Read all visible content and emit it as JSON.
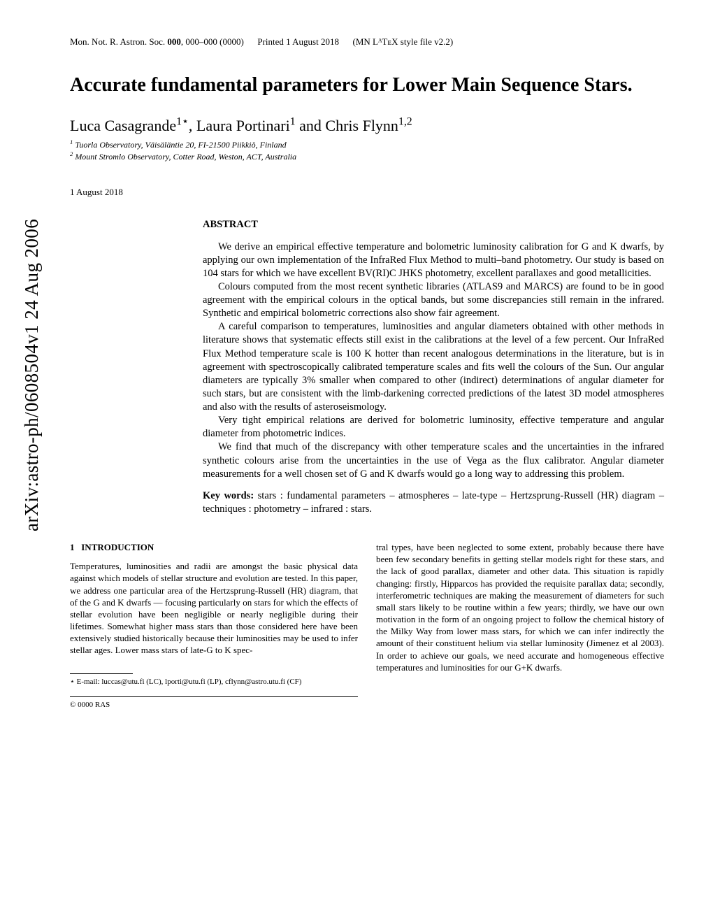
{
  "header": {
    "journal": "Mon. Not. R. Astron. Soc.",
    "vol": "000",
    "pages": "000–000",
    "year": "(0000)",
    "printed": "Printed 1 August 2018",
    "style": "(MN LᴬTᴇX style file v2.2)"
  },
  "arxiv": "arXiv:astro-ph/0608504v1  24 Aug 2006",
  "title": "Accurate fundamental parameters for Lower Main Sequence Stars.",
  "authors": "Luca Casagrande",
  "author_sup1": "1⋆",
  "author2": ", Laura Portinari",
  "author_sup2": "1",
  "author3": " and Chris Flynn",
  "author_sup3": "1,2",
  "affil1": "Tuorla Observatory, Väisäläntie 20, FI-21500 Piikkiö, Finland",
  "affil2": "Mount Stromlo Observatory, Cotter Road, Weston, ACT, Australia",
  "date": "1 August 2018",
  "abstract_label": "ABSTRACT",
  "abstract": {
    "p1": "We derive an empirical effective temperature and bolometric luminosity calibration for G and K dwarfs, by applying our own implementation of the InfraRed Flux Method to multi–band photometry. Our study is based on 104 stars for which we have excellent BV(RI)C JHKS photometry, excellent parallaxes and good metallicities.",
    "p2": "Colours computed from the most recent synthetic libraries (ATLAS9 and MARCS) are found to be in good agreement with the empirical colours in the optical bands, but some discrepancies still remain in the infrared. Synthetic and empirical bolometric corrections also show fair agreement.",
    "p3": "A careful comparison to temperatures, luminosities and angular diameters obtained with other methods in literature shows that systematic effects still exist in the calibrations at the level of a few percent. Our InfraRed Flux Method temperature scale is 100 K hotter than recent analogous determinations in the literature, but is in agreement with spectroscopically calibrated temperature scales and fits well the colours of the Sun. Our angular diameters are typically 3% smaller when compared to other (indirect) determinations of angular diameter for such stars, but are consistent with the limb-darkening corrected predictions of the latest 3D model atmospheres and also with the results of asteroseismology.",
    "p4": "Very tight empirical relations are derived for bolometric luminosity, effective temperature and angular diameter from photometric indices.",
    "p5": "We find that much of the discrepancy with other temperature scales and the uncertainties in the infrared synthetic colours arise from the uncertainties in the use of Vega as the flux calibrator. Angular diameter measurements for a well chosen set of G and K dwarfs would go a long way to addressing this problem."
  },
  "keywords_label": "Key words:",
  "keywords": " stars : fundamental parameters – atmospheres – late-type – Hertzsprung-Russell (HR) diagram – techniques : photometry – infrared : stars.",
  "section1_num": "1",
  "section1_title": "INTRODUCTION",
  "col1": "Temperatures, luminosities and radii are amongst the basic physical data against which models of stellar structure and evolution are tested. In this paper, we address one particular area of the Hertzsprung-Russell (HR) diagram, that of the G and K dwarfs — focusing particularly on stars for which the effects of stellar evolution have been negligible or nearly negligible during their lifetimes. Somewhat higher mass stars than those considered here have been extensively studied historically because their luminosities may be used to infer stellar ages. Lower mass stars of late-G to K spec-",
  "col2": "tral types, have been neglected to some extent, probably because there have been few secondary benefits in getting stellar models right for these stars, and the lack of good parallax, diameter and other data. This situation is rapidly changing: firstly, Hipparcos has provided the requisite parallax data; secondly, interferometric techniques are making the measurement of diameters for such small stars likely to be routine within a few years; thirdly, we have our own motivation in the form of an ongoing project to follow the chemical history of the Milky Way from lower mass stars, for which we can infer indirectly the amount of their constituent helium via stellar luminosity (Jimenez et al 2003). In order to achieve our goals, we need accurate and homogeneous effective temperatures and luminosities for our G+K dwarfs.",
  "footnote": "⋆ E-mail: luccas@utu.fi (LC), lporti@utu.fi (LP), cflynn@astro.utu.fi (CF)",
  "copyright": "© 0000 RAS"
}
